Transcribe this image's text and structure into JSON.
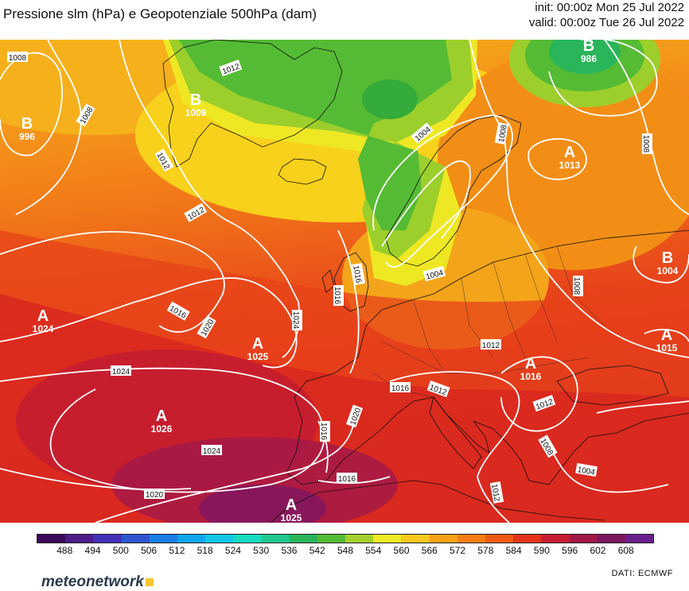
{
  "header": {
    "title": "Pressione slm (hPa) e Geopotenziale 500hPa (dam)",
    "init": "init: 00:00z Mon 25 Jul 2022",
    "valid": "valid: 00:00z Tue 26 Jul 2022"
  },
  "pressure_centers": [
    {
      "letter": "B",
      "value": "996"
    },
    {
      "letter": "B",
      "value": "1009"
    },
    {
      "letter": "B",
      "value": "986"
    },
    {
      "letter": "A",
      "value": "1013"
    },
    {
      "letter": "B",
      "value": "1004"
    },
    {
      "letter": "A",
      "value": "1024"
    },
    {
      "letter": "A",
      "value": "1025"
    },
    {
      "letter": "A",
      "value": "1026"
    },
    {
      "letter": "A",
      "value": "1016"
    },
    {
      "letter": "A",
      "value": "1015"
    },
    {
      "letter": "A",
      "value": "1025"
    }
  ],
  "isobar_labels": [
    "1008",
    "1012",
    "1004",
    "1008",
    "1008",
    "1012",
    "1016",
    "1004",
    "1008",
    "1016",
    "1020",
    "1024",
    "1024",
    "1016",
    "1012",
    "1012",
    "1012",
    "1020",
    "1016",
    "1024",
    "1016",
    "1020",
    "1012",
    "1004",
    "1008",
    "1016",
    "1008",
    "1012"
  ],
  "legend": {
    "ticks": [
      "488",
      "494",
      "500",
      "506",
      "512",
      "518",
      "524",
      "530",
      "536",
      "542",
      "548",
      "554",
      "560",
      "566",
      "572",
      "578",
      "584",
      "590",
      "596",
      "602",
      "608"
    ],
    "colors": [
      "#3c0a59",
      "#4d1c8a",
      "#4330b8",
      "#2e55d2",
      "#1a7ee6",
      "#0fa6ee",
      "#12c8e6",
      "#18dbc2",
      "#1fc98e",
      "#2ab55a",
      "#54bb34",
      "#a3d02c",
      "#eeea24",
      "#f8c81c",
      "#f7a118",
      "#f47e14",
      "#ef5a12",
      "#e4341c",
      "#c81c32",
      "#a31848",
      "#7d1660",
      "#6a1f8f"
    ],
    "logo": "meteonetwork",
    "credit": "DATI:  ECMWF"
  }
}
